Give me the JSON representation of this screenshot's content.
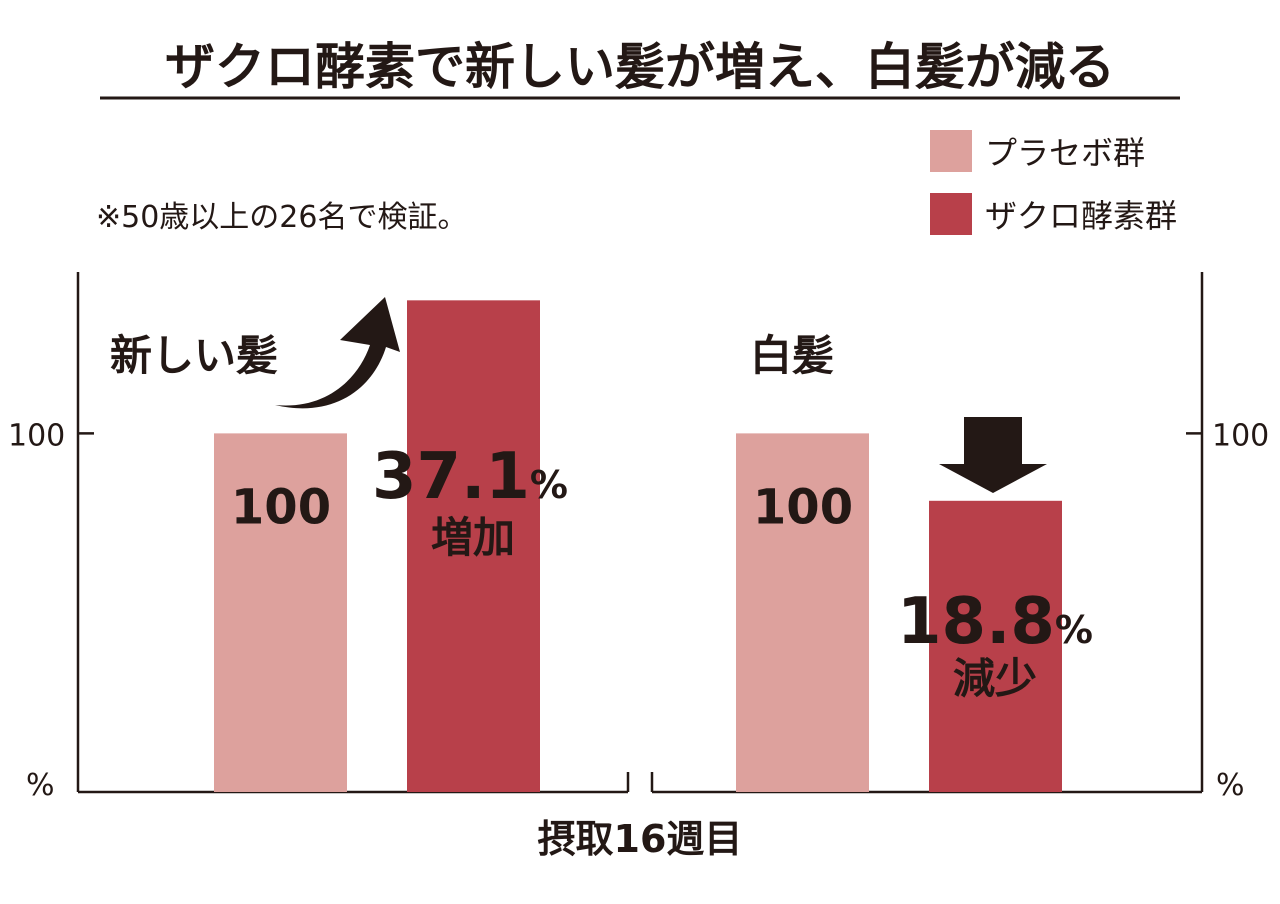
{
  "chart_data": {
    "type": "bar",
    "title": "ザクロ酵素で新しい髪が増え、白髪が減る",
    "note": "※50歳以上の26名で検証。",
    "xlabel": "摂取16週目",
    "ylabel": "%",
    "ytick_label": "100",
    "ylim": [
      0,
      145
    ],
    "ytick_value": 100,
    "legend_position": "top-right",
    "series": [
      {
        "name": "プラセボ群",
        "color": "#DDA19D"
      },
      {
        "name": "ザクロ酵素群",
        "color": "#B8404A"
      }
    ],
    "panels": [
      {
        "label": "新しい髪",
        "values": [
          100,
          137.1
        ],
        "bar_label": "100",
        "change_value": "37.1",
        "change_unit": "%",
        "change_text": "増加",
        "arrow": "up"
      },
      {
        "label": "白髪",
        "values": [
          100,
          81.2
        ],
        "bar_label": "100",
        "change_value": "18.8",
        "change_unit": "%",
        "change_text": "減少",
        "arrow": "down"
      }
    ]
  },
  "colors": {
    "text": "#231815",
    "placebo": "#DDA19D",
    "pomegranate": "#B8404A"
  }
}
